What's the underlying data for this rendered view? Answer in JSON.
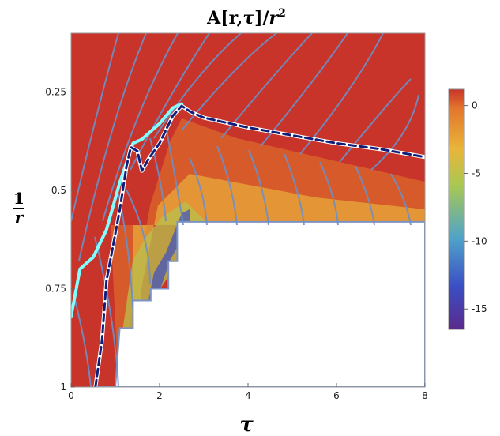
{
  "chart_data": {
    "type": "heatmap",
    "title": "A[r,τ]/r²",
    "title_parts": {
      "main": "A[r,",
      "tau": "τ",
      "close": "]/",
      "r": "r",
      "exp": "2"
    },
    "xlabel": "τ",
    "ylabel": {
      "numerator": "1",
      "denominator": "r"
    },
    "xlim": [
      0,
      8
    ],
    "ylim": [
      0.1,
      1
    ],
    "y_inverted": true,
    "x_ticks": [
      "0",
      "2",
      "4",
      "6",
      "8"
    ],
    "y_ticks": [
      "0.25",
      "0.5",
      "0.75",
      "1"
    ],
    "colorbar": {
      "range": [
        -16.5,
        1.2
      ],
      "ticks": [
        "0",
        "-5",
        "-10",
        "-15"
      ],
      "colormap": [
        "#5a2a8c",
        "#3b4fc4",
        "#4fa3c9",
        "#a9c853",
        "#e9b53a",
        "#e3762c",
        "#c8342a"
      ]
    },
    "excluded_region_boundary": [
      [
        0.6,
        1.0
      ],
      [
        1.0,
        1.0
      ],
      [
        1.1,
        0.85
      ],
      [
        1.4,
        0.85
      ],
      [
        1.4,
        0.78
      ],
      [
        1.8,
        0.78
      ],
      [
        1.8,
        0.75
      ],
      [
        2.2,
        0.75
      ],
      [
        2.2,
        0.68
      ],
      [
        2.4,
        0.68
      ],
      [
        2.4,
        0.58
      ],
      [
        8.0,
        0.58
      ]
    ],
    "series": [
      {
        "line_color": "#7fffff",
        "style": "solid",
        "values": [
          [
            0.0,
            0.82
          ],
          [
            0.2,
            0.7
          ],
          [
            0.5,
            0.67
          ],
          [
            0.8,
            0.6
          ],
          [
            1.1,
            0.48
          ],
          [
            1.4,
            0.38
          ],
          [
            1.6,
            0.37
          ],
          [
            2.0,
            0.33
          ],
          [
            2.3,
            0.29
          ],
          [
            2.5,
            0.28
          ]
        ]
      },
      {
        "line_color": "#0f1f7a",
        "style": "dashed",
        "values": [
          [
            0.55,
            1.0
          ],
          [
            0.7,
            0.88
          ],
          [
            0.8,
            0.73
          ],
          [
            0.9,
            0.67
          ],
          [
            1.1,
            0.55
          ],
          [
            1.25,
            0.44
          ],
          [
            1.35,
            0.39
          ],
          [
            1.5,
            0.4
          ],
          [
            1.6,
            0.45
          ],
          [
            1.75,
            0.42
          ],
          [
            2.0,
            0.38
          ],
          [
            2.3,
            0.31
          ],
          [
            2.5,
            0.285
          ],
          [
            2.7,
            0.3
          ],
          [
            3.0,
            0.315
          ],
          [
            4.0,
            0.34
          ],
          [
            5.0,
            0.36
          ],
          [
            6.0,
            0.38
          ],
          [
            7.0,
            0.395
          ],
          [
            8.0,
            0.415
          ]
        ]
      }
    ],
    "characteristics_color": "#6d8fc7"
  }
}
